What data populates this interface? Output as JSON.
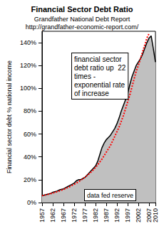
{
  "chart_data": {
    "type": "line",
    "title": "Financial Sector Debt Ratio",
    "subtitle": [
      "Grandfather National Debt Report",
      "http://grandfather-economic-report.com/"
    ],
    "y_label": "Financial sector debt % national income",
    "annotations": [
      [
        "financial sector",
        "debt ratio up  22",
        "times -",
        "exponential rate",
        "of increase"
      ],
      [
        "data fed reserve"
      ]
    ],
    "x": [
      1957,
      1958,
      1959,
      1960,
      1961,
      1962,
      1963,
      1964,
      1965,
      1966,
      1967,
      1968,
      1969,
      1970,
      1971,
      1972,
      1973,
      1974,
      1975,
      1976,
      1977,
      1978,
      1979,
      1980,
      1981,
      1982,
      1983,
      1984,
      1985,
      1986,
      1987,
      1988,
      1989,
      1990,
      1991,
      1992,
      1993,
      1994,
      1995,
      1996,
      1997,
      1998,
      1999,
      2000,
      2001,
      2002,
      2003,
      2004,
      2005,
      2006,
      2007,
      2008,
      2009,
      2010
    ],
    "series": [
      {
        "type": "area",
        "color": "#000000",
        "line_style": "solid",
        "marker": "none",
        "values": [
          6,
          6.5,
          7,
          7.5,
          8,
          9,
          9.5,
          10,
          11,
          11.5,
          12,
          13,
          14,
          15,
          16,
          17,
          19,
          20,
          20,
          21,
          22,
          24,
          26,
          28,
          30,
          32,
          36,
          42,
          48,
          52,
          55,
          57,
          59,
          62,
          65,
          69,
          74,
          80,
          85,
          90,
          95,
          103,
          110,
          115,
          120,
          123,
          126,
          130,
          135,
          140,
          144,
          146,
          135,
          123
        ]
      },
      {
        "type": "line",
        "color": "#ff0000",
        "line_style": "dotted",
        "marker": "none",
        "values": [
          6,
          6.4,
          6.8,
          7.3,
          7.8,
          8.3,
          8.9,
          9.5,
          10.1,
          10.8,
          11.5,
          12.3,
          13.1,
          14,
          15,
          16,
          17,
          18.2,
          19.4,
          20.7,
          22.1,
          23.6,
          25.2,
          26.9,
          28.8,
          30.8,
          33,
          35.5,
          38,
          41,
          44,
          47,
          50,
          54,
          58,
          62,
          66,
          71,
          76,
          82,
          88,
          94,
          101,
          108,
          115,
          120,
          126,
          132,
          138,
          144,
          148,
          null,
          null,
          null
        ]
      }
    ],
    "xlim": [
      1957,
      2010
    ],
    "xticks": [
      1957,
      1962,
      1967,
      1972,
      1977,
      1982,
      1987,
      1992,
      1997,
      2002,
      2007,
      2010
    ],
    "ylim": [
      0,
      150
    ],
    "yticks": [
      {
        "value": 0,
        "label": "0%"
      },
      {
        "value": 20,
        "label": "20%"
      },
      {
        "value": 40,
        "label": "40%"
      },
      {
        "value": 60,
        "label": "60%"
      },
      {
        "value": 80,
        "label": "80%"
      },
      {
        "value": 100,
        "label": "100%"
      },
      {
        "value": 120,
        "label": "120%"
      },
      {
        "value": 140,
        "label": "140%"
      }
    ],
    "grid": false
  }
}
